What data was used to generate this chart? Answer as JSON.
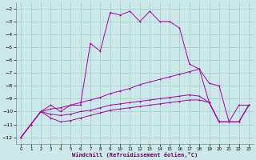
{
  "xlabel": "Windchill (Refroidissement éolien,°C)",
  "background_color": "#cce8e8",
  "grid_color": "#99cccc",
  "line_color": "#aa00aa",
  "xlim": [
    -0.5,
    23.5
  ],
  "ylim": [
    -12.5,
    -1.5
  ],
  "yticks": [
    -12,
    -11,
    -10,
    -9,
    -8,
    -7,
    -6,
    -5,
    -4,
    -3,
    -2
  ],
  "xticks": [
    0,
    1,
    2,
    3,
    4,
    5,
    6,
    7,
    8,
    9,
    10,
    11,
    12,
    13,
    14,
    15,
    16,
    17,
    18,
    19,
    20,
    21,
    22,
    23
  ],
  "main_curve": [
    -12,
    -11,
    -10,
    -9.5,
    -10,
    -9.5,
    -9.5,
    -4.7,
    -5.3,
    -2.3,
    -2.5,
    -2.2,
    -3.0,
    -2.2,
    -3.0,
    -3.0,
    -3.5,
    -6.3,
    -6.7,
    -7.8,
    -8.0,
    -10.8,
    -10.8,
    -9.5
  ],
  "line1": [
    -12,
    -11,
    -10,
    -9.8,
    -9.7,
    -9.5,
    -9.3,
    -9.1,
    -8.9,
    -8.6,
    -8.4,
    -8.2,
    -7.9,
    -7.7,
    -7.5,
    -7.3,
    -7.1,
    -6.9,
    -6.7,
    -9.3,
    -10.8,
    -10.8,
    -9.5,
    -9.5
  ],
  "line2": [
    -12,
    -11,
    -10,
    -10.2,
    -10.3,
    -10.2,
    -10.0,
    -9.9,
    -9.7,
    -9.5,
    -9.4,
    -9.3,
    -9.2,
    -9.1,
    -9.0,
    -8.9,
    -8.8,
    -8.7,
    -8.8,
    -9.3,
    -10.8,
    -10.8,
    -10.8,
    -9.5
  ],
  "line3": [
    -12,
    -11,
    -10,
    -10.5,
    -10.8,
    -10.7,
    -10.5,
    -10.3,
    -10.1,
    -9.9,
    -9.8,
    -9.7,
    -9.6,
    -9.5,
    -9.4,
    -9.3,
    -9.2,
    -9.1,
    -9.1,
    -9.3,
    -10.8,
    -10.8,
    -10.8,
    -9.5
  ]
}
